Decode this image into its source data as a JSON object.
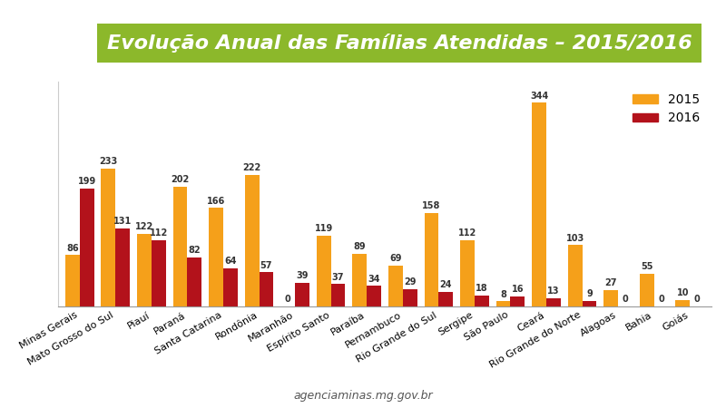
{
  "chart_data": {
    "type": "bar",
    "title": "Evolução Anual das Famílias Atendidas – 2015/2016",
    "source": "agenciaminas.mg.gov.br",
    "categories": [
      "Minas Gerais",
      "Mato Grosso do Sul",
      "Piauí",
      "Paraná",
      "Santa Catarina",
      "Rondônia",
      "Maranhão",
      "Espírito Santo",
      "Paraíba",
      "Pernambuco",
      "Rio Grande do Sul",
      "Sergipe",
      "São Paulo",
      "Ceará",
      "Rio Grande do Norte",
      "Alagoas",
      "Bahia",
      "Goiás"
    ],
    "series": [
      {
        "name": "2015",
        "color": "#f5a01a",
        "values": [
          86,
          233,
          122,
          202,
          166,
          222,
          0,
          119,
          89,
          69,
          158,
          112,
          8,
          344,
          103,
          27,
          55,
          10
        ]
      },
      {
        "name": "2016",
        "color": "#b3121b",
        "values": [
          199,
          131,
          112,
          82,
          64,
          57,
          39,
          37,
          34,
          29,
          24,
          18,
          16,
          13,
          9,
          0,
          0,
          0
        ]
      }
    ],
    "ylim": [
      0,
      380
    ],
    "yticks": [],
    "legend": "upper right",
    "data_labels": true,
    "tick_labels": "x",
    "grid": false
  }
}
